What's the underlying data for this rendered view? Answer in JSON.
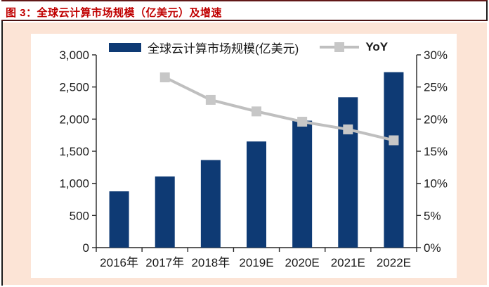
{
  "header": {
    "title": "图 3：全球云计算市场规模（亿美元）及增速"
  },
  "colors": {
    "title_red": "#C00000",
    "panel_peach": "#FCE4D6",
    "bar_navy": "#0E3A74",
    "line_gray": "#BFBFBF",
    "marker_gray": "#C7C7C7",
    "frame_dark_red": "#611717",
    "frame_black": "#1c1c1c",
    "axis_black": "#262626"
  },
  "chart_data": {
    "type": "bar",
    "subtype": "bar with secondary-axis line (YoY)",
    "title": "全球云计算市场规模（亿美元）及增速",
    "categories": [
      "2016年",
      "2017年",
      "2018年",
      "2019E",
      "2020E",
      "2021E",
      "2022E"
    ],
    "series": [
      {
        "name": "全球云计算市场规模(亿美元)",
        "type": "bar",
        "axis": "left",
        "color": "#0E3A74",
        "values": [
          876,
          1108,
          1363,
          1652,
          1976,
          2340,
          2731
        ]
      },
      {
        "name": "YoY",
        "type": "line",
        "axis": "right",
        "color": "#BFBFBF",
        "unit": "%",
        "values": [
          null,
          26.5,
          23.0,
          21.2,
          19.6,
          18.4,
          16.7
        ]
      }
    ],
    "left_axis": {
      "min": 0,
      "max": 3000,
      "step": 500,
      "tick_labels": [
        "0",
        "500",
        "1,000",
        "1,500",
        "2,000",
        "2,500",
        "3,000"
      ]
    },
    "right_axis": {
      "min": 0,
      "max": 30,
      "step": 5,
      "tick_labels": [
        "0%",
        "5%",
        "10%",
        "15%",
        "20%",
        "25%",
        "30%"
      ]
    },
    "grid": false,
    "legend_position": "top-center"
  }
}
